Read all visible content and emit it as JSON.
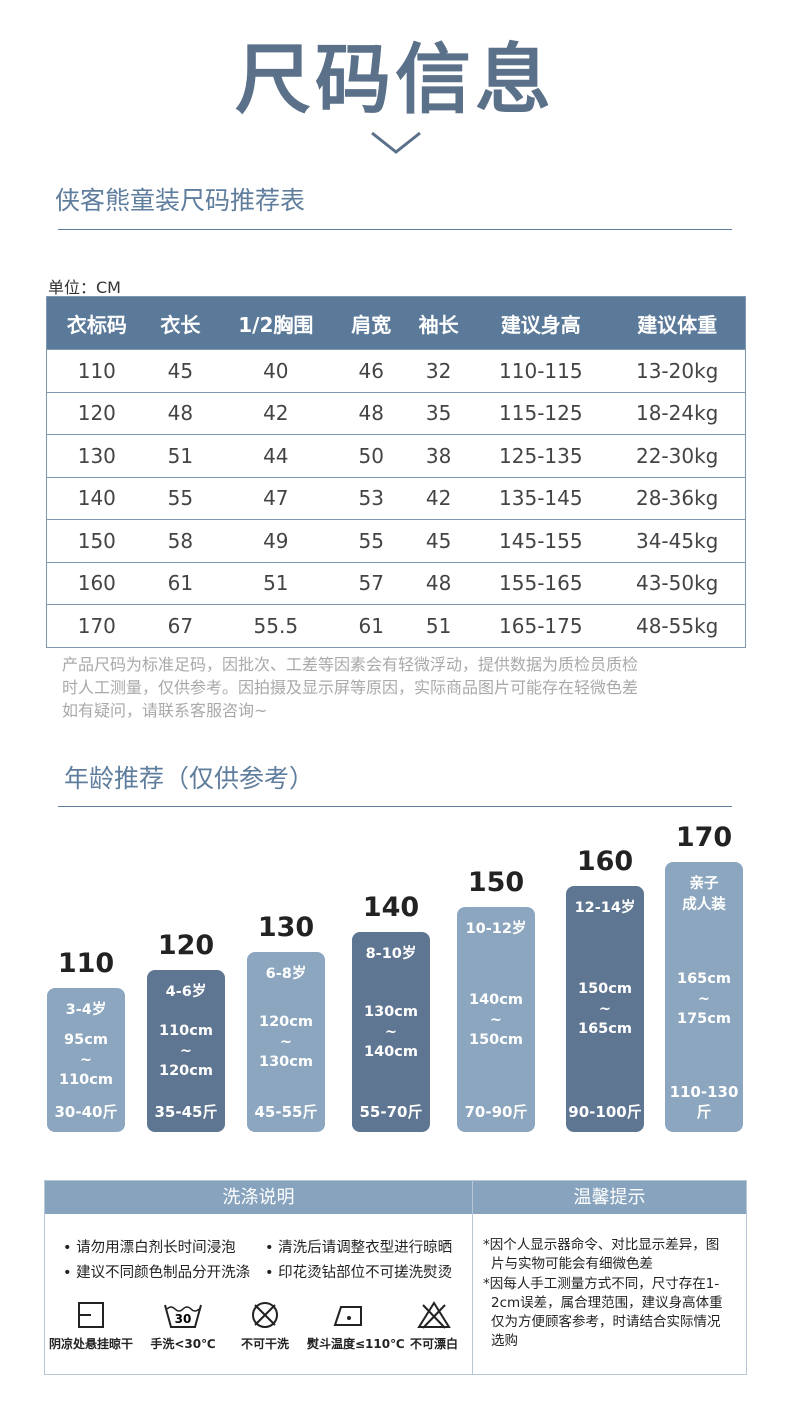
{
  "header": {
    "title": "尺码信息"
  },
  "size_section": {
    "title": "侠客熊童装尺码推荐表",
    "unit": "单位：CM"
  },
  "table": {
    "columns": [
      "衣标码",
      "衣长",
      "1/2胸围",
      "肩宽",
      "袖长",
      "建议身高",
      "建议体重"
    ],
    "rows": [
      [
        "110",
        "45",
        "40",
        "46",
        "32",
        "110-115",
        "13-20kg"
      ],
      [
        "120",
        "48",
        "42",
        "48",
        "35",
        "115-125",
        "18-24kg"
      ],
      [
        "130",
        "51",
        "44",
        "50",
        "38",
        "125-135",
        "22-30kg"
      ],
      [
        "140",
        "55",
        "47",
        "53",
        "42",
        "135-145",
        "28-36kg"
      ],
      [
        "150",
        "58",
        "49",
        "55",
        "45",
        "145-155",
        "34-45kg"
      ],
      [
        "160",
        "61",
        "51",
        "57",
        "48",
        "155-165",
        "43-50kg"
      ],
      [
        "170",
        "67",
        "55.5",
        "61",
        "51",
        "165-175",
        "48-55kg"
      ]
    ]
  },
  "note": [
    "产品尺码为标准足码，因批次、工差等因素会有轻微浮动，提供数据为质检员质检",
    "时人工测量，仅供参考。因拍摄及显示屏等原因，实际商品图片可能存在轻微色差",
    "如有疑问，请联系客服咨询~"
  ],
  "age_section": {
    "title": "年龄推荐（仅供参考）",
    "cards": [
      {
        "size": "110",
        "age": [
          "3-4岁"
        ],
        "height": [
          "95cm",
          "~",
          "110cm"
        ],
        "weight": "30-40斤"
      },
      {
        "size": "120",
        "age": [
          "4-6岁"
        ],
        "height": [
          "110cm",
          "~",
          "120cm"
        ],
        "weight": "35-45斤"
      },
      {
        "size": "130",
        "age": [
          "6-8岁"
        ],
        "height": [
          "120cm",
          "~",
          "130cm"
        ],
        "weight": "45-55斤"
      },
      {
        "size": "140",
        "age": [
          "8-10岁"
        ],
        "height": [
          "130cm",
          "~",
          "140cm"
        ],
        "weight": "55-70斤"
      },
      {
        "size": "150",
        "age": [
          "10-12岁"
        ],
        "height": [
          "140cm",
          "~",
          "150cm"
        ],
        "weight": "70-90斤"
      },
      {
        "size": "160",
        "age": [
          "12-14岁"
        ],
        "height": [
          "150cm",
          "~",
          "165cm"
        ],
        "weight": "90-100斤"
      },
      {
        "size": "170",
        "age": [
          "亲子",
          "成人装"
        ],
        "height": [
          "165cm",
          "~",
          "175cm"
        ],
        "weight": "110-130斤"
      }
    ]
  },
  "wash": {
    "title": "洗涤说明",
    "tips": [
      "• 请勿用漂白剂长时间浸泡",
      "• 清洗后请调整衣型进行晾晒",
      "• 建议不同颜色制品分开洗涤",
      "• 印花烫钻部位不可搓洗熨烫"
    ],
    "icons": [
      {
        "label": "阴凉处悬挂晾干"
      },
      {
        "symbol": "30",
        "label": "手洗<30℃"
      },
      {
        "label": "不可干洗"
      },
      {
        "label": "熨斗温度≤110℃"
      },
      {
        "label": "不可漂白"
      }
    ]
  },
  "notice": {
    "title": "温馨提示",
    "items": [
      "*因个人显示器命令、对比显示差异，图片与实物可能会有细微色差",
      "*因每人手工测量方式不同，尺寸存在1-2cm误差，属合理范围，建议身高体重仅为方便顾客参考，时请结合实际情况选购"
    ]
  }
}
